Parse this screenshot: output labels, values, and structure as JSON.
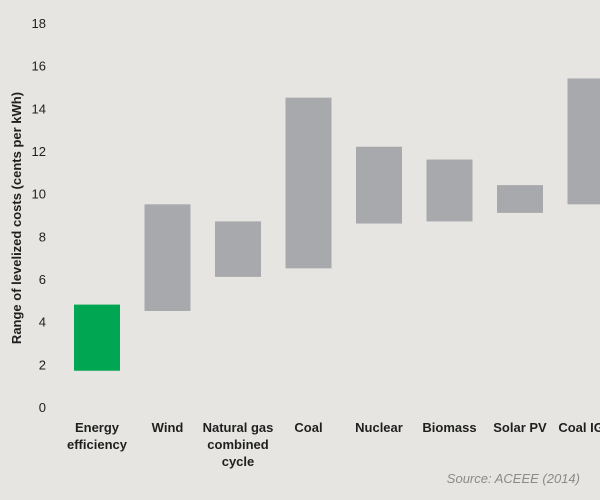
{
  "chart_data": {
    "type": "bar",
    "subtype": "floating-range",
    "title": "",
    "xlabel": "",
    "ylabel": "Range of levelized costs (cents per kWh)",
    "ylim": [
      0,
      18
    ],
    "yticks": [
      0,
      2,
      4,
      6,
      8,
      10,
      12,
      14,
      16,
      18
    ],
    "grid": false,
    "categories": [
      [
        "Energy",
        "efficiency"
      ],
      [
        "Wind"
      ],
      [
        "Natural gas",
        "combined",
        "cycle"
      ],
      [
        "Coal"
      ],
      [
        "Nuclear"
      ],
      [
        "Biomass"
      ],
      [
        "Solar PV"
      ],
      [
        "Coal IGCC"
      ]
    ],
    "series": [
      {
        "low": [
          1.7,
          4.5,
          6.1,
          6.5,
          8.6,
          8.7,
          9.1,
          9.5
        ],
        "high": [
          4.8,
          9.5,
          8.7,
          14.5,
          12.2,
          11.6,
          10.4,
          15.4
        ]
      }
    ],
    "colors": {
      "highlight": "#00a651",
      "default": "#a7a9ac",
      "background": "#e6e5e1"
    },
    "highlight_index": 0
  },
  "source": "Source: ACEEE (2014)"
}
